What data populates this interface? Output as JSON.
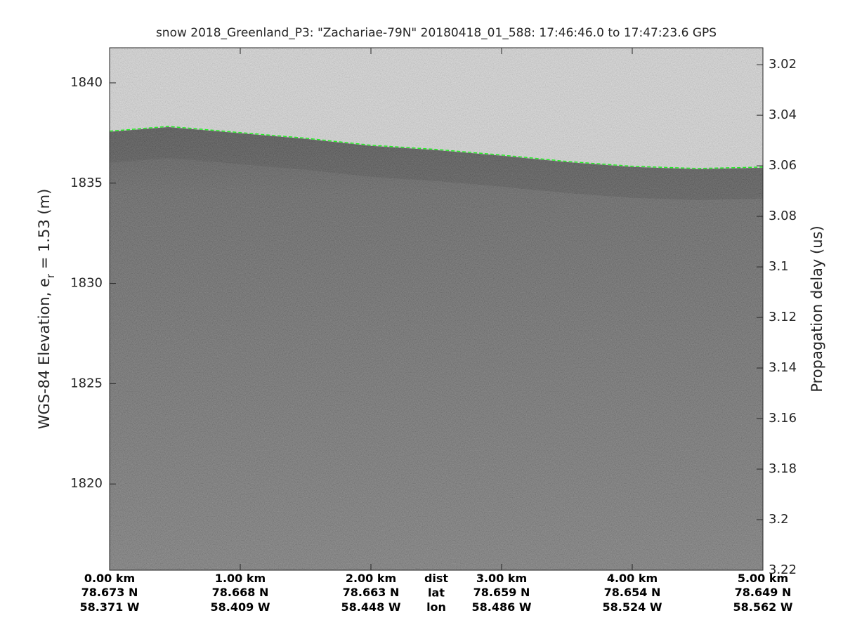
{
  "chart_data": {
    "type": "echogram",
    "title": "snow 2018_Greenland_P3: \"Zachariae-79N\"  20180418_01_588: 17:46:46.0 to 17:47:23.6 GPS",
    "ylabel": {
      "text": "WGS-84 Elevation, e",
      "subscript": "r",
      "suffix": " = 1.53 (m)"
    },
    "y2label": "Propagation delay (us)",
    "ylim": [
      1815.7,
      1841.75
    ],
    "yticks": [
      1820,
      1825,
      1830,
      1835,
      1840
    ],
    "y2lim": [
      3.0133,
      3.22
    ],
    "y2ticks": [
      3.02,
      3.04,
      3.06,
      3.08,
      3.1,
      3.12,
      3.14,
      3.16,
      3.18,
      3.2,
      3.22
    ],
    "xlim": [
      0,
      5
    ],
    "xticks": [
      {
        "value": 0,
        "label": "0.00 km"
      },
      {
        "value": 1,
        "label": "1.00 km"
      },
      {
        "value": 2,
        "label": "2.00 km"
      },
      {
        "value": 3,
        "label": "3.00 km"
      },
      {
        "value": 4,
        "label": "4.00 km"
      },
      {
        "value": 5,
        "label": "5.00 km"
      }
    ],
    "xtick_lat": [
      "78.673 N",
      "78.668 N",
      "78.663 N",
      "78.659 N",
      "78.654 N",
      "78.649 N"
    ],
    "xtick_lon": [
      "58.371 W",
      "58.409 W",
      "58.448 W",
      "58.486 W",
      "58.524 W",
      "58.562 W"
    ],
    "row_names": {
      "value": 2.5,
      "labels": [
        "dist",
        "lat",
        "lon"
      ]
    },
    "x": [
      0,
      0.45,
      1,
      1.5,
      2,
      2.5,
      3,
      3.5,
      4,
      4.5,
      5
    ],
    "series": [
      {
        "color": "#22ee22",
        "values": [
          1837.59,
          1837.83,
          1837.52,
          1837.24,
          1836.89,
          1836.68,
          1836.4,
          1836.08,
          1835.84,
          1835.73,
          1835.8
        ]
      }
    ]
  }
}
